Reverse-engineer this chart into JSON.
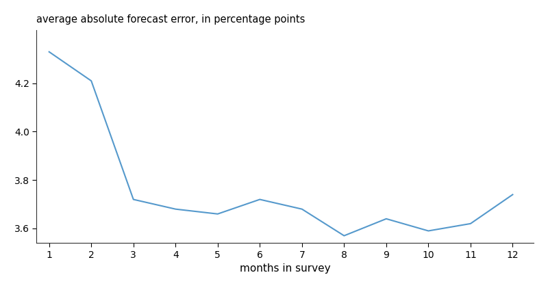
{
  "x": [
    1,
    2,
    3,
    4,
    5,
    6,
    7,
    8,
    9,
    10,
    11,
    12
  ],
  "y": [
    4.33,
    4.21,
    3.72,
    3.68,
    3.66,
    3.72,
    3.68,
    3.57,
    3.64,
    3.59,
    3.62,
    3.74
  ],
  "line_color": "#5599cc",
  "line_width": 1.5,
  "title": "average absolute forecast error, in percentage points",
  "title_fontsize": 10.5,
  "xlabel": "months in survey",
  "xlabel_fontsize": 11,
  "xlim": [
    0.7,
    12.5
  ],
  "ylim": [
    3.54,
    4.42
  ],
  "yticks": [
    3.6,
    3.8,
    4.0,
    4.2
  ],
  "xticks": [
    1,
    2,
    3,
    4,
    5,
    6,
    7,
    8,
    9,
    10,
    11,
    12
  ],
  "background_color": "#ffffff",
  "tick_fontsize": 10
}
